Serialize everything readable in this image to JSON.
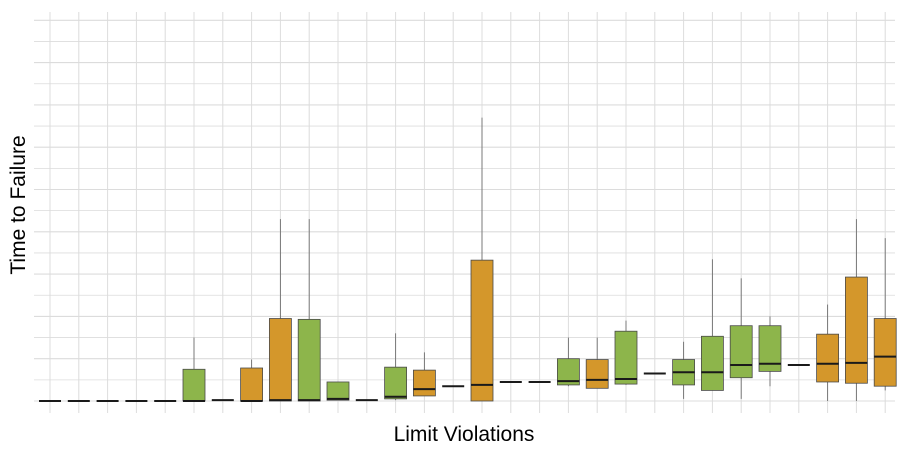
{
  "chart_data": {
    "type": "boxplot",
    "title": "",
    "xlabel": "Limit Violations",
    "ylabel": "Time to Failure",
    "ylim": [
      0,
      9.3
    ],
    "grid": true,
    "legend": "none",
    "colors": {
      "green": "#8db54b",
      "orange": "#d4972b",
      "border": "#4a4a4a",
      "grid": "#dcdcdc"
    },
    "boxes": [
      {
        "index": 1,
        "color": "green",
        "min": 0.0,
        "q1": 0.0,
        "median": 0.0,
        "q3": 0.0,
        "max": 0.0
      },
      {
        "index": 2,
        "color": "green",
        "min": 0.0,
        "q1": 0.0,
        "median": 0.0,
        "q3": 0.0,
        "max": 0.0
      },
      {
        "index": 3,
        "color": "green",
        "min": 0.0,
        "q1": 0.0,
        "median": 0.0,
        "q3": 0.0,
        "max": 0.0
      },
      {
        "index": 4,
        "color": "green",
        "min": 0.0,
        "q1": 0.0,
        "median": 0.0,
        "q3": 0.0,
        "max": 0.0
      },
      {
        "index": 5,
        "color": "green",
        "min": 0.0,
        "q1": 0.0,
        "median": 0.0,
        "q3": 0.0,
        "max": 0.0
      },
      {
        "index": 6,
        "color": "green",
        "min": 0.0,
        "q1": 0.0,
        "median": 0.0,
        "q3": 0.75,
        "max": 1.5
      },
      {
        "index": 7,
        "color": "green",
        "min": 0.02,
        "q1": 0.02,
        "median": 0.02,
        "q3": 0.02,
        "max": 0.02
      },
      {
        "index": 8,
        "color": "orange",
        "min": 0.0,
        "q1": 0.0,
        "median": 0.0,
        "q3": 0.78,
        "max": 0.98
      },
      {
        "index": 9,
        "color": "orange",
        "min": 0.0,
        "q1": 0.0,
        "median": 0.02,
        "q3": 1.95,
        "max": 4.3
      },
      {
        "index": 10,
        "color": "green",
        "min": 0.0,
        "q1": 0.0,
        "median": 0.02,
        "q3": 1.93,
        "max": 4.3
      },
      {
        "index": 11,
        "color": "green",
        "min": 0.02,
        "q1": 0.02,
        "median": 0.05,
        "q3": 0.45,
        "max": 0.45
      },
      {
        "index": 12,
        "color": "green",
        "min": 0.02,
        "q1": 0.02,
        "median": 0.02,
        "q3": 0.02,
        "max": 0.02
      },
      {
        "index": 13,
        "color": "green",
        "min": 0.02,
        "q1": 0.05,
        "median": 0.1,
        "q3": 0.8,
        "max": 1.6
      },
      {
        "index": 14,
        "color": "orange",
        "min": 0.12,
        "q1": 0.12,
        "median": 0.28,
        "q3": 0.73,
        "max": 1.15
      },
      {
        "index": 15,
        "color": "orange",
        "min": 0.35,
        "q1": 0.35,
        "median": 0.35,
        "q3": 0.35,
        "max": 0.35
      },
      {
        "index": 16,
        "color": "orange",
        "min": 0.0,
        "q1": 0.0,
        "median": 0.38,
        "q3": 3.33,
        "max": 6.7
      },
      {
        "index": 17,
        "color": "green",
        "min": 0.45,
        "q1": 0.45,
        "median": 0.45,
        "q3": 0.45,
        "max": 0.45
      },
      {
        "index": 18,
        "color": "green",
        "min": 0.45,
        "q1": 0.45,
        "median": 0.45,
        "q3": 0.45,
        "max": 0.45
      },
      {
        "index": 19,
        "color": "green",
        "min": 0.35,
        "q1": 0.38,
        "median": 0.47,
        "q3": 1.0,
        "max": 1.5
      },
      {
        "index": 20,
        "color": "orange",
        "min": 0.3,
        "q1": 0.3,
        "median": 0.5,
        "q3": 0.98,
        "max": 1.5
      },
      {
        "index": 21,
        "color": "green",
        "min": 0.38,
        "q1": 0.4,
        "median": 0.52,
        "q3": 1.65,
        "max": 1.9
      },
      {
        "index": 22,
        "color": "green",
        "min": 0.65,
        "q1": 0.65,
        "median": 0.65,
        "q3": 0.65,
        "max": 0.65
      },
      {
        "index": 23,
        "color": "green",
        "min": 0.05,
        "q1": 0.38,
        "median": 0.68,
        "q3": 0.98,
        "max": 1.4
      },
      {
        "index": 24,
        "color": "green",
        "min": 0.25,
        "q1": 0.25,
        "median": 0.68,
        "q3": 1.53,
        "max": 3.35
      },
      {
        "index": 25,
        "color": "green",
        "min": 0.05,
        "q1": 0.55,
        "median": 0.85,
        "q3": 1.78,
        "max": 2.9
      },
      {
        "index": 26,
        "color": "green",
        "min": 0.35,
        "q1": 0.7,
        "median": 0.88,
        "q3": 1.78,
        "max": 2.0
      },
      {
        "index": 27,
        "color": "green",
        "min": 0.85,
        "q1": 0.85,
        "median": 0.85,
        "q3": 0.85,
        "max": 0.85
      },
      {
        "index": 28,
        "color": "orange",
        "min": 0.0,
        "q1": 0.45,
        "median": 0.88,
        "q3": 1.58,
        "max": 2.28
      },
      {
        "index": 29,
        "color": "orange",
        "min": 0.0,
        "q1": 0.42,
        "median": 0.9,
        "q3": 2.93,
        "max": 4.3
      },
      {
        "index": 30,
        "color": "orange",
        "min": 0.25,
        "q1": 0.35,
        "median": 1.05,
        "q3": 1.95,
        "max": 3.85
      }
    ]
  }
}
